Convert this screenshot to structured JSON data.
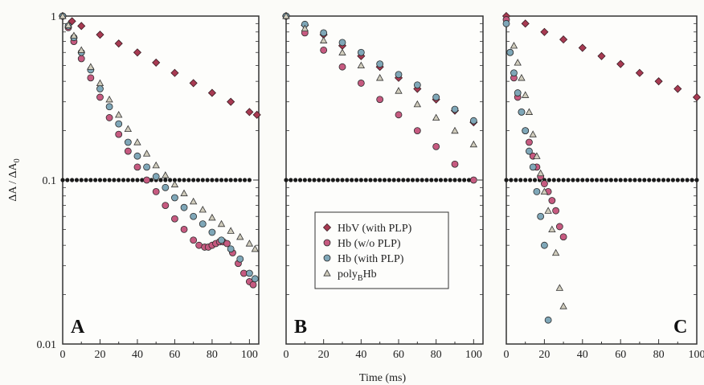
{
  "figure": {
    "ylabel_main": "ΔA / ΔA",
    "ylabel_sub": "0",
    "xlabel": "Time (ms)"
  },
  "colors": {
    "hbv": "#a83a52",
    "hb_wo": "#c65a80",
    "hb_with": "#7fa7b8",
    "polyb": "#d0ccbc",
    "threshold": "#1a1a1a"
  },
  "legend": [
    {
      "key": "hbv",
      "label": "HbV (with PLP)",
      "marker": "diamond"
    },
    {
      "key": "hb_wo",
      "label": "Hb (w/o PLP)",
      "marker": "circle"
    },
    {
      "key": "hb_with",
      "label": "Hb (with PLP)",
      "marker": "circle"
    },
    {
      "key": "polyb",
      "label_main": "poly",
      "label_sub": "B",
      "label_end": "Hb",
      "marker": "triangle"
    }
  ],
  "chart_data": [
    {
      "type": "scatter",
      "panel": "A",
      "xlabel": "",
      "ylabel": "ΔA / ΔA0",
      "xlim": [
        0,
        105
      ],
      "ylim": [
        0.01,
        1
      ],
      "yscale": "log",
      "x_ticks": [
        0,
        20,
        40,
        60,
        80,
        100
      ],
      "y_ticks": [
        0.01,
        0.1,
        1
      ],
      "y_tick_labels": [
        "0.01",
        "0.1",
        "1"
      ],
      "threshold": 0.1,
      "threshold_x": [
        0,
        100
      ],
      "series": [
        {
          "name": "HbV (with PLP)",
          "key": "hbv",
          "x": [
            0,
            5,
            10,
            20,
            30,
            40,
            50,
            60,
            70,
            80,
            90,
            100,
            104
          ],
          "y": [
            1,
            0.93,
            0.87,
            0.77,
            0.68,
            0.6,
            0.52,
            0.45,
            0.39,
            0.34,
            0.3,
            0.26,
            0.25
          ]
        },
        {
          "name": "Hb (w/o PLP)",
          "key": "hb_wo",
          "x": [
            0,
            3,
            6,
            10,
            15,
            20,
            25,
            30,
            35,
            40,
            45,
            50,
            55,
            60,
            65,
            70,
            73,
            76,
            78,
            80,
            82,
            84,
            86,
            88,
            91,
            94,
            97,
            100,
            102
          ],
          "y": [
            1,
            0.85,
            0.7,
            0.55,
            0.42,
            0.32,
            0.24,
            0.19,
            0.15,
            0.12,
            0.1,
            0.085,
            0.07,
            0.058,
            0.05,
            0.043,
            0.04,
            0.039,
            0.039,
            0.04,
            0.041,
            0.042,
            0.042,
            0.041,
            0.036,
            0.031,
            0.027,
            0.024,
            0.023
          ]
        },
        {
          "name": "Hb (with PLP)",
          "key": "hb_with",
          "x": [
            0,
            3,
            6,
            10,
            15,
            20,
            25,
            30,
            35,
            40,
            45,
            50,
            55,
            60,
            65,
            70,
            75,
            80,
            85,
            90,
            95,
            100,
            103
          ],
          "y": [
            1,
            0.87,
            0.74,
            0.6,
            0.47,
            0.36,
            0.28,
            0.22,
            0.17,
            0.14,
            0.12,
            0.105,
            0.09,
            0.078,
            0.068,
            0.06,
            0.054,
            0.048,
            0.043,
            0.038,
            0.033,
            0.027,
            0.025
          ]
        },
        {
          "name": "polyBHb",
          "key": "polyb",
          "x": [
            0,
            3,
            6,
            10,
            15,
            20,
            25,
            30,
            35,
            40,
            45,
            50,
            55,
            60,
            65,
            70,
            75,
            80,
            85,
            90,
            95,
            100,
            103
          ],
          "y": [
            1,
            0.88,
            0.76,
            0.62,
            0.49,
            0.39,
            0.31,
            0.25,
            0.205,
            0.17,
            0.145,
            0.123,
            0.107,
            0.094,
            0.083,
            0.074,
            0.066,
            0.059,
            0.054,
            0.049,
            0.045,
            0.041,
            0.038
          ]
        }
      ]
    },
    {
      "type": "scatter",
      "panel": "B",
      "xlabel": "",
      "ylabel": "",
      "xlim": [
        0,
        105
      ],
      "ylim": [
        0.01,
        1
      ],
      "yscale": "log",
      "x_ticks": [
        0,
        20,
        40,
        60,
        80,
        100
      ],
      "threshold": 0.1,
      "threshold_x": [
        0,
        100
      ],
      "series": [
        {
          "name": "HbV (with PLP)",
          "key": "hbv",
          "x": [
            0,
            10,
            20,
            30,
            40,
            50,
            60,
            70,
            80,
            90,
            100
          ],
          "y": [
            1,
            0.88,
            0.77,
            0.66,
            0.57,
            0.49,
            0.42,
            0.36,
            0.31,
            0.265,
            0.225
          ]
        },
        {
          "name": "Hb (w/o PLP)",
          "key": "hb_wo",
          "x": [
            0,
            10,
            20,
            30,
            40,
            50,
            60,
            70,
            80,
            90,
            100
          ],
          "y": [
            1,
            0.79,
            0.62,
            0.49,
            0.39,
            0.31,
            0.25,
            0.2,
            0.16,
            0.125,
            0.1
          ]
        },
        {
          "name": "Hb (with PLP)",
          "key": "hb_with",
          "x": [
            0,
            10,
            20,
            30,
            40,
            50,
            60,
            70,
            80,
            90,
            100
          ],
          "y": [
            1,
            0.89,
            0.79,
            0.69,
            0.6,
            0.51,
            0.44,
            0.38,
            0.32,
            0.27,
            0.23
          ]
        },
        {
          "name": "polyBHb",
          "key": "polyb",
          "x": [
            0,
            10,
            20,
            30,
            40,
            50,
            60,
            70,
            80,
            90,
            100
          ],
          "y": [
            1,
            0.84,
            0.71,
            0.6,
            0.5,
            0.42,
            0.35,
            0.29,
            0.24,
            0.2,
            0.165
          ]
        }
      ]
    },
    {
      "type": "scatter",
      "panel": "C",
      "xlabel": "",
      "ylabel": "",
      "xlim": [
        0,
        100
      ],
      "ylim": [
        0.01,
        1
      ],
      "yscale": "log",
      "x_ticks": [
        0,
        20,
        40,
        60,
        80,
        100
      ],
      "threshold": 0.1,
      "threshold_x": [
        0,
        100
      ],
      "series": [
        {
          "name": "HbV (with PLP)",
          "key": "hbv",
          "x": [
            0,
            10,
            20,
            30,
            40,
            50,
            60,
            70,
            80,
            90,
            100
          ],
          "y": [
            1,
            0.9,
            0.8,
            0.72,
            0.64,
            0.57,
            0.51,
            0.45,
            0.4,
            0.36,
            0.32
          ]
        },
        {
          "name": "Hb (w/o PLP)",
          "key": "hb_wo",
          "x": [
            0,
            2,
            4,
            6,
            8,
            10,
            12,
            14,
            16,
            18,
            20,
            22,
            24,
            26,
            28,
            30
          ],
          "y": [
            0.95,
            0.6,
            0.42,
            0.32,
            0.26,
            0.2,
            0.17,
            0.14,
            0.12,
            0.105,
            0.095,
            0.085,
            0.075,
            0.065,
            0.052,
            0.045
          ]
        },
        {
          "name": "Hb (with PLP)",
          "key": "hb_with",
          "x": [
            0,
            2,
            4,
            6,
            8,
            10,
            12,
            14,
            16,
            18,
            20,
            22
          ],
          "y": [
            0.9,
            0.6,
            0.45,
            0.34,
            0.26,
            0.2,
            0.15,
            0.12,
            0.085,
            0.06,
            0.04,
            0.014
          ]
        },
        {
          "name": "polyBHb",
          "key": "polyb",
          "x": [
            4,
            6,
            8,
            10,
            12,
            14,
            16,
            18,
            20,
            22,
            24,
            26,
            28,
            30
          ],
          "y": [
            0.66,
            0.52,
            0.42,
            0.33,
            0.26,
            0.19,
            0.14,
            0.11,
            0.085,
            0.065,
            0.05,
            0.036,
            0.022,
            0.017
          ]
        }
      ]
    }
  ]
}
